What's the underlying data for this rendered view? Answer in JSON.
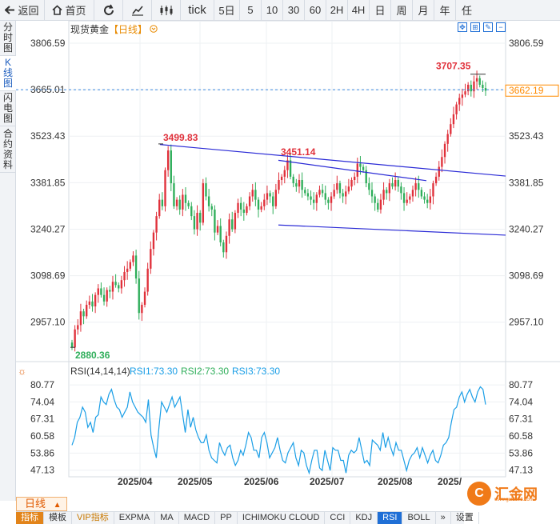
{
  "toolbar": {
    "back_label": "返回",
    "home_label": "首页",
    "tick_label": "tick",
    "periods": [
      "5日",
      "5",
      "10",
      "30",
      "60",
      "2H",
      "4H",
      "日",
      "周",
      "月",
      "年",
      "任"
    ]
  },
  "sidebar": {
    "items": [
      "分时图",
      "K线图",
      "闪电图",
      "合约资料"
    ]
  },
  "chart_title": {
    "name": "现货黄金",
    "period": "【日线】",
    "more_icon": "circle-chevron-down-icon"
  },
  "chart_data": [
    {
      "type": "candlestick",
      "price_ticks": [
        "3806.59",
        "3665.01",
        "3523.43",
        "3381.85",
        "3240.27",
        "3098.69",
        "2957.10"
      ],
      "date_ticks": [
        "2025/04",
        "2025/05",
        "2025/06",
        "2025/07",
        "2025/08",
        "2025/"
      ],
      "annotations": {
        "high_1": "3499.83",
        "high_2": "3451.14",
        "high_3": "3707.35",
        "low": "2880.36"
      },
      "last_price": "3662.19",
      "dashed_line_label": "3665.01",
      "ylim": [
        2837,
        3826
      ],
      "trendlines": [
        {
          "from": [
            "2025/04/03",
            3498
          ],
          "to": [
            "2025/09/22",
            3402
          ]
        },
        {
          "from": [
            "2025/06/13",
            3450
          ],
          "to": [
            "2025/08/14",
            3388
          ]
        },
        {
          "from": [
            "2025/06/13",
            3253
          ],
          "to": [
            "2025/09/22",
            3222
          ]
        }
      ]
    },
    {
      "type": "line",
      "title": "RSI(14,14,14)",
      "legend": [
        "RSI1:73.30",
        "RSI2:73.30",
        "RSI3:73.30"
      ],
      "y_ticks": [
        "80.77",
        "74.04",
        "67.31",
        "60.58",
        "53.86",
        "47.13"
      ],
      "ylim": [
        42,
        83
      ],
      "values": [
        57,
        60,
        66,
        68,
        72,
        70,
        64,
        66,
        62,
        68,
        69,
        76,
        74,
        73,
        77,
        79,
        75,
        72,
        71,
        68,
        70,
        72,
        78,
        74,
        72,
        70,
        69,
        68,
        66,
        75,
        61,
        56,
        52,
        64,
        74,
        72,
        70,
        73,
        76,
        72,
        74,
        76,
        69,
        62,
        71,
        64,
        68,
        63,
        60,
        58,
        58,
        61,
        55,
        52,
        51,
        50,
        58,
        55,
        53,
        56,
        57,
        52,
        49,
        51,
        55,
        53,
        57,
        62,
        60,
        55,
        55,
        52,
        60,
        62,
        58,
        52,
        54,
        56,
        60,
        55,
        51,
        50,
        54,
        56,
        58,
        52,
        49,
        55,
        54,
        49,
        46,
        51,
        55,
        55,
        48,
        47,
        55,
        51,
        47,
        56,
        55,
        55,
        51,
        51,
        46,
        53,
        55,
        54,
        55,
        60,
        55,
        50,
        51,
        49,
        59,
        58,
        57,
        55,
        62,
        56,
        60,
        56,
        53,
        58,
        55,
        55,
        51,
        47,
        51,
        53,
        54,
        56,
        52,
        56,
        53,
        50,
        53,
        55,
        51,
        50,
        53,
        57,
        58,
        60,
        66,
        71,
        72,
        76,
        78,
        74,
        77,
        79,
        76,
        74,
        78,
        80,
        79,
        73
      ]
    }
  ],
  "bottom": {
    "period_label": "日线",
    "tabs": [
      "指标",
      "模板",
      "VIP指标",
      "EXPMA",
      "MA",
      "MACD",
      "PP",
      "ICHIMOKU CLOUD",
      "CCI",
      "KDJ",
      "RSI",
      "BOLL"
    ],
    "settings_label": "设置"
  },
  "brand": {
    "name": "汇金网",
    "url": "www.gold678.com",
    "logo_char": "C"
  },
  "colors": {
    "up": "#e0313b",
    "down": "#2fae5a",
    "trend": "#2b2bd6",
    "rsi": "#1a9ee6",
    "dashed": "#3a86e0",
    "price_tag": "#ff8a00"
  }
}
